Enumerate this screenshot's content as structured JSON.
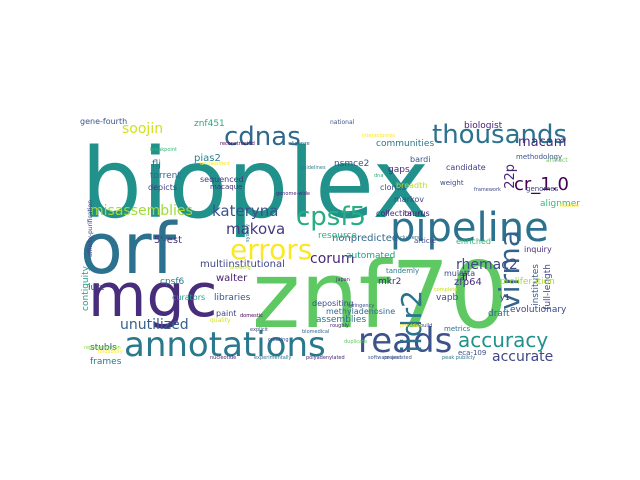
{
  "words": [
    {
      "text": "bioplex",
      "color": "#21918c"
    },
    {
      "text": "znf70",
      "color": "#5ec962"
    },
    {
      "text": "orf",
      "color": "#2c728e"
    },
    {
      "text": "mgc",
      "color": "#472d7b"
    },
    {
      "text": "pipeline",
      "color": "#2c728e"
    },
    {
      "text": "annotations",
      "color": "#2a788e"
    },
    {
      "text": "reads",
      "color": "#3b528b"
    },
    {
      "text": "errors",
      "color": "#fde725"
    },
    {
      "text": "thousands",
      "color": "#2c728e"
    },
    {
      "text": "cdnas",
      "color": "#31688e"
    },
    {
      "text": "cpsf5",
      "color": "#26ad81"
    },
    {
      "text": "accuracy",
      "color": "#21918c"
    },
    {
      "text": "virma",
      "color": "#33638d"
    },
    {
      "text": "cr_1.0",
      "color": "#440154"
    },
    {
      "text": "kateryna",
      "color": "#3b528b"
    },
    {
      "text": "makova",
      "color": "#443983"
    },
    {
      "text": "corum",
      "color": "#482878"
    },
    {
      "text": "misassemblies",
      "color": "#a0da39"
    },
    {
      "text": "soojin",
      "color": "#d0e11c"
    },
    {
      "text": "unutilized",
      "color": "#355f8d"
    },
    {
      "text": "accurate",
      "color": "#414487"
    },
    {
      "text": "rhemac2",
      "color": "#3e4989"
    },
    {
      "text": "macam",
      "color": "#472c7a"
    },
    {
      "text": "iidr2",
      "color": "#2c728e"
    },
    {
      "text": "22p",
      "color": "#482475"
    },
    {
      "text": "alignments",
      "color": "#3aba76"
    },
    {
      "text": "zfp64",
      "color": "#46327e"
    },
    {
      "text": "institutes",
      "color": "#38598c"
    },
    {
      "text": "full-length",
      "color": "#404688"
    },
    {
      "text": "proliferation",
      "color": "#aadc32"
    },
    {
      "text": "evolutionary",
      "color": "#3e4989"
    },
    {
      "text": "nonpredicted",
      "color": "#31688e"
    },
    {
      "text": "multiinstitutional",
      "color": "#404688"
    },
    {
      "text": "5'-est",
      "color": "#46327e"
    },
    {
      "text": "walter",
      "color": "#481f70"
    },
    {
      "text": "libraries",
      "color": "#3b528b"
    },
    {
      "text": "stubls",
      "color": "#33638d"
    },
    {
      "text": "frames",
      "color": "#2a788e"
    },
    {
      "text": "lutz",
      "color": "#3f4788"
    },
    {
      "text": "assemblies",
      "color": "#2c728e"
    },
    {
      "text": "mkr2",
      "color": "#472d7b"
    },
    {
      "text": "vapb",
      "color": "#3e4989"
    },
    {
      "text": "fl",
      "color": "#440154"
    },
    {
      "text": "flj",
      "color": "#2c728e"
    },
    {
      "text": "pias2",
      "color": "#26828e"
    },
    {
      "text": "torrent",
      "color": "#31688e"
    },
    {
      "text": "depicts",
      "color": "#443a83"
    },
    {
      "text": "nsmce2",
      "color": "#3b528b"
    },
    {
      "text": "gaps",
      "color": "#482878"
    },
    {
      "text": "communities",
      "color": "#2a788e"
    },
    {
      "text": "sequenced",
      "color": "#453781"
    },
    {
      "text": "macaque",
      "color": "#46307e"
    },
    {
      "text": "clones",
      "color": "#3d4e8a"
    },
    {
      "text": "markov",
      "color": "#414487"
    },
    {
      "text": "bardi",
      "color": "#3b528b"
    },
    {
      "text": "biologist",
      "color": "#482173"
    },
    {
      "text": "candidate",
      "color": "#433e85"
    },
    {
      "text": "collection",
      "color": "#472a7a"
    },
    {
      "text": "resource",
      "color": "#2db27d"
    },
    {
      "text": "automated",
      "color": "#1f9e89"
    },
    {
      "text": "depositing",
      "color": "#3d4d8a"
    },
    {
      "text": "methyladenosine",
      "color": "#31688e"
    },
    {
      "text": "inquiry",
      "color": "#472d7b"
    },
    {
      "text": "enriched",
      "color": "#35b779"
    },
    {
      "text": "mulatta",
      "color": "#3e4989"
    },
    {
      "text": "draft",
      "color": "#31688e"
    },
    {
      "text": "cpsf6",
      "color": "#2a788e"
    },
    {
      "text": "curators",
      "color": "#20a486"
    },
    {
      "text": "paint",
      "color": "#3f4788"
    },
    {
      "text": "znf451",
      "color": "#26ad81"
    },
    {
      "text": "contiguity",
      "color": "#1fa088"
    },
    {
      "text": "methodology",
      "color": "#3b528b"
    },
    {
      "text": "genomes",
      "color": "#433e85"
    },
    {
      "text": "metrics",
      "color": "#2d708e"
    },
    {
      "text": "eca-109",
      "color": "#3e4a89"
    },
    {
      "text": "national",
      "color": "#39568c"
    },
    {
      "text": "taurus",
      "color": "#481c6e"
    },
    {
      "text": "breadth",
      "color": "#b5de2b"
    },
    {
      "text": "article",
      "color": "#3f4788"
    },
    {
      "text": "weight",
      "color": "#3e4989"
    },
    {
      "text": "y1",
      "color": "#482878"
    },
    {
      "text": "tandemly",
      "color": "#2a788e"
    },
    {
      "text": "artifact",
      "color": "#6ccd5a"
    },
    {
      "text": "quality",
      "color": "#d8e219"
    },
    {
      "text": "representation",
      "color": "#8bd646"
    },
    {
      "text": "relative",
      "color": "#fde725"
    },
    {
      "text": "allowing",
      "color": "#c2df23"
    },
    {
      "text": "affinity-purification",
      "color": "#3e4989"
    },
    {
      "text": "software-assisted",
      "color": "#3b528b"
    },
    {
      "text": "polyadenylated",
      "color": "#482576"
    },
    {
      "text": "experimentally",
      "color": "#2c728e"
    },
    {
      "text": "nucleotide",
      "color": "#482878"
    },
    {
      "text": "peak publicly",
      "color": "#2a788e"
    },
    {
      "text": "foldability",
      "color": "#fde725"
    },
    {
      "text": "biomedical",
      "color": "#33638d"
    },
    {
      "text": "framework",
      "color": "#3f4788"
    },
    {
      "text": "japan",
      "color": "#472d7b"
    },
    {
      "text": "dna",
      "color": "#29af7f"
    },
    {
      "text": "build",
      "color": "#3e4989"
    },
    {
      "text": "duplicate",
      "color": "#5ec962"
    },
    {
      "text": "genome-wide",
      "color": "#482878"
    },
    {
      "text": "interactomes",
      "color": "#fde725"
    },
    {
      "text": "stringency",
      "color": "#3b528b"
    },
    {
      "text": "sydney",
      "color": "#2c728e"
    },
    {
      "text": "domestic",
      "color": "#440154"
    },
    {
      "text": "explicit",
      "color": "#3f4788"
    },
    {
      "text": "roughly",
      "color": "#482173"
    },
    {
      "text": "breakpoint",
      "color": "#35b779"
    },
    {
      "text": "project",
      "color": "#3b528b"
    },
    {
      "text": "digenze",
      "color": "#2c728e"
    },
    {
      "text": "provides",
      "color": "#fde725"
    },
    {
      "text": "complete",
      "color": "#c8e020"
    },
    {
      "text": "guidelines",
      "color": "#26828e"
    },
    {
      "text": "creating",
      "color": "#3e4989"
    },
    {
      "text": "reconstructed",
      "color": "#440154"
    },
    {
      "text": "clusters",
      "color": "#31688e"
    },
    {
      "text": "unclassified",
      "color": "#fde725"
    },
    {
      "text": "gene-fourth",
      "color": "#3b528b"
    }
  ]
}
